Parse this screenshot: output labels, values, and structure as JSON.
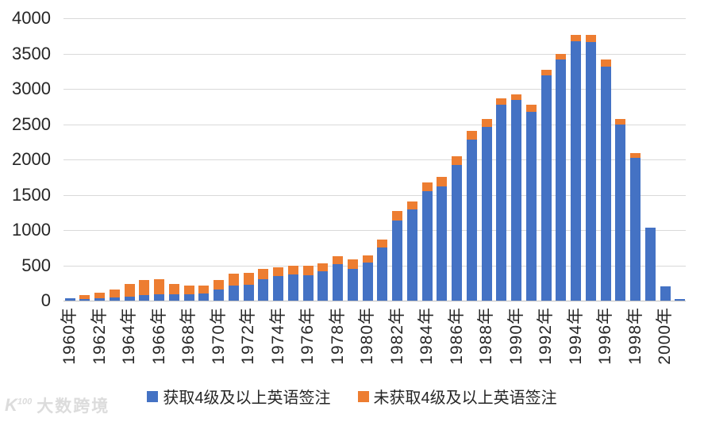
{
  "chart_data": {
    "type": "bar",
    "stacked": true,
    "title": "",
    "categories": [
      1960,
      1961,
      1962,
      1963,
      1964,
      1965,
      1966,
      1967,
      1968,
      1969,
      1970,
      1971,
      1972,
      1973,
      1974,
      1975,
      1976,
      1977,
      1978,
      1979,
      1980,
      1981,
      1982,
      1983,
      1984,
      1985,
      1986,
      1987,
      1988,
      1989,
      1990,
      1991,
      1992,
      1993,
      1994,
      1995,
      1996,
      1997,
      1998,
      1999,
      2000,
      2001
    ],
    "x_tick_labels": [
      "1960年",
      "1962年",
      "1964年",
      "1966年",
      "1968年",
      "1970年",
      "1972年",
      "1974年",
      "1976年",
      "1978年",
      "1980年",
      "1982年",
      "1984年",
      "1986年",
      "1988年",
      "1990年",
      "1992年",
      "1994年",
      "1996年",
      "1998年",
      "2000年"
    ],
    "y_tick_labels": [
      "0",
      "500",
      "1000",
      "1500",
      "2000",
      "2500",
      "3000",
      "3500",
      "4000"
    ],
    "ylim": [
      0,
      4000
    ],
    "ytick_step": 500,
    "grid": true,
    "legend_position": "bottom",
    "series": [
      {
        "name": "获取4级及以上英语签注",
        "color": "#4472C4",
        "values": [
          30,
          25,
          35,
          40,
          55,
          80,
          95,
          85,
          95,
          100,
          155,
          210,
          230,
          305,
          350,
          375,
          360,
          420,
          520,
          455,
          545,
          750,
          1140,
          1290,
          1550,
          1620,
          1920,
          2280,
          2460,
          2770,
          2840,
          2670,
          3190,
          3420,
          3670,
          3660,
          3310,
          2500,
          2025,
          1030,
          205,
          25
        ]
      },
      {
        "name": "未获取4级及以上英语签注",
        "color": "#ED7D31",
        "values": [
          0,
          50,
          75,
          115,
          185,
          210,
          210,
          150,
          120,
          110,
          135,
          170,
          160,
          145,
          125,
          125,
          130,
          110,
          110,
          125,
          95,
          110,
          130,
          120,
          130,
          130,
          130,
          120,
          110,
          90,
          80,
          100,
          80,
          80,
          90,
          100,
          110,
          75,
          70,
          0,
          0,
          0
        ]
      }
    ]
  },
  "watermark": {
    "logo_main": "K",
    "logo_sup": "100",
    "text": "大数跨境"
  }
}
